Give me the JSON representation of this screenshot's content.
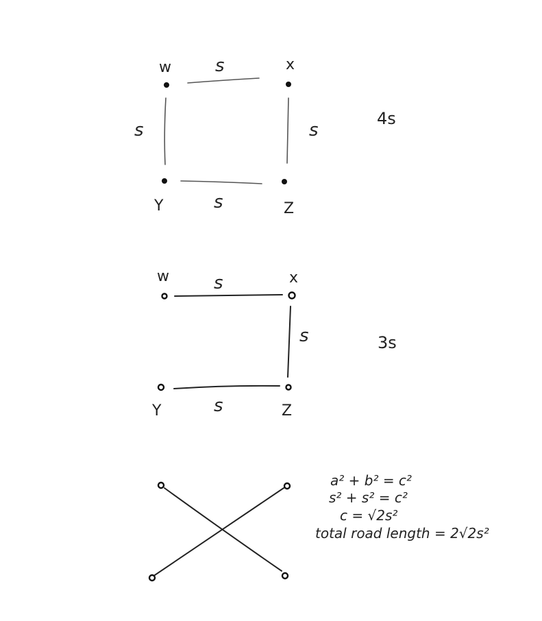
{
  "diagram1": {
    "nodes": {
      "w": "w",
      "x": "x",
      "y": "Y",
      "z": "Z"
    },
    "edges": {
      "top": "s",
      "left": "s",
      "right": "s",
      "bottom": "s"
    },
    "total": "4s"
  },
  "diagram2": {
    "nodes": {
      "w": "w",
      "x": "x",
      "y": "Y",
      "z": "Z"
    },
    "edges": {
      "top": "s",
      "right": "s",
      "bottom": "s"
    },
    "total": "3s"
  },
  "diagram3": {
    "equations": {
      "pythagorean": "a² + b² = c²",
      "substituted": "s² + s² = c²",
      "result": "c = √2s²",
      "total": "total road length = 2√2s²"
    }
  }
}
